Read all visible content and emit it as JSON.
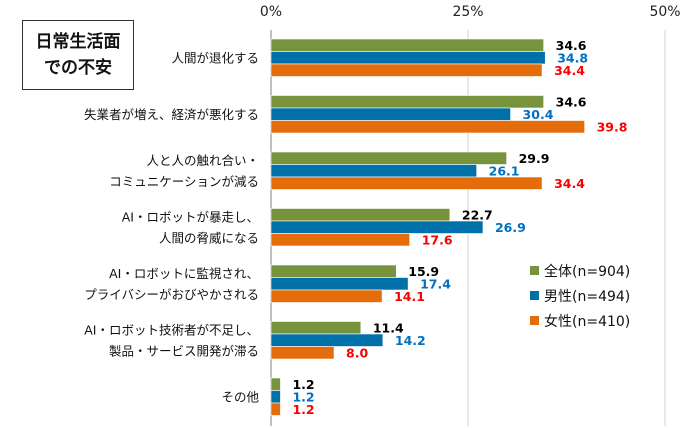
{
  "title_box": {
    "line1": "日常生活面",
    "line2": "での不安"
  },
  "chart_data": {
    "type": "bar",
    "orientation": "horizontal",
    "x_ticks": [
      "0%",
      "25%",
      "50%"
    ],
    "xlim": [
      0,
      50
    ],
    "categories": [
      [
        "人間が退化する"
      ],
      [
        "失業者が増え、経済が悪化する"
      ],
      [
        "人と人の触れ合い・",
        "コミュニケーションが減る"
      ],
      [
        "AI・ロボットが暴走し、",
        "人間の脅威になる"
      ],
      [
        "AI・ロボットに監視され、",
        "プライバシーがおびやかされる"
      ],
      [
        "AI・ロボット技術者が不足し、",
        "製品・サービス開発が滞る"
      ],
      [
        "その他"
      ]
    ],
    "series": [
      {
        "name": "全体(n=904)",
        "bar_color": "#77933c",
        "label_color": "#000000",
        "values": [
          34.6,
          34.6,
          29.9,
          22.7,
          15.9,
          11.4,
          1.2
        ]
      },
      {
        "name": "男性(n=494)",
        "bar_color": "#0070a8",
        "label_color": "#0070c0",
        "values": [
          34.8,
          30.4,
          26.1,
          26.9,
          17.4,
          14.2,
          1.2
        ]
      },
      {
        "name": "女性(n=410)",
        "bar_color": "#e46c0a",
        "label_color": "#ff0000",
        "values": [
          34.4,
          39.8,
          34.4,
          17.6,
          14.1,
          8.0,
          1.2
        ]
      }
    ]
  }
}
